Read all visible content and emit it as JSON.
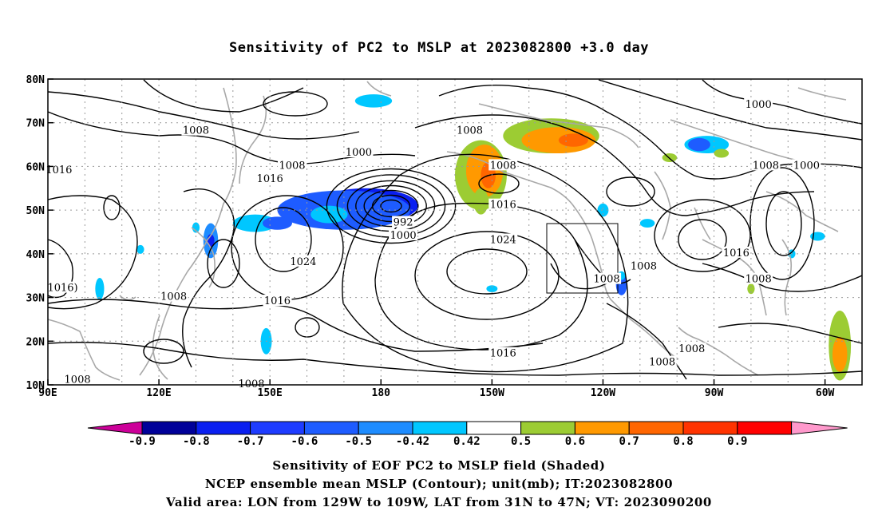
{
  "title": "Sensitivity of PC2 to MSLP at 2023082800 +3.0 day",
  "map": {
    "lon_labels": [
      "90E",
      "120E",
      "150E",
      "180",
      "150W",
      "120W",
      "90W",
      "60W"
    ],
    "lat_labels": [
      "80N",
      "70N",
      "60N",
      "50N",
      "40N",
      "30N",
      "20N",
      "10N"
    ],
    "contour_labels": [
      {
        "text": "1008",
        "lon": 130,
        "lat": 68
      },
      {
        "text": "1000",
        "lon": 174,
        "lat": 63
      },
      {
        "text": "1008",
        "lon": 156,
        "lat": 60
      },
      {
        "text": "1016",
        "lon": 93,
        "lat": 59
      },
      {
        "text": "1016",
        "lon": 150,
        "lat": 57
      },
      {
        "text": "992",
        "lon": 186,
        "lat": 47
      },
      {
        "text": "1000",
        "lon": 186,
        "lat": 44
      },
      {
        "text": "1024",
        "lon": 159,
        "lat": 38
      },
      {
        "text": "1016)",
        "lon": 94,
        "lat": 32
      },
      {
        "text": "1008",
        "lon": 124,
        "lat": 30
      },
      {
        "text": "1016",
        "lon": 152,
        "lat": 29
      },
      {
        "text": "1008",
        "lon": 204,
        "lat": 68
      },
      {
        "text": "1008",
        "lon": 213,
        "lat": 60
      },
      {
        "text": "1016",
        "lon": 213,
        "lat": 51
      },
      {
        "text": "1024",
        "lon": 213,
        "lat": 43
      },
      {
        "text": "1016",
        "lon": 213,
        "lat": 17
      },
      {
        "text": "1000",
        "lon": 282,
        "lat": 74
      },
      {
        "text": "1008",
        "lon": 284,
        "lat": 60
      },
      {
        "text": "1000",
        "lon": 295,
        "lat": 60
      },
      {
        "text": "1008",
        "lon": 251,
        "lat": 37
      },
      {
        "text": "1008",
        "lon": 241,
        "lat": 34
      },
      {
        "text": "1016",
        "lon": 276,
        "lat": 40
      },
      {
        "text": "1008",
        "lon": 282,
        "lat": 34
      },
      {
        "text": "1008",
        "lon": 264,
        "lat": 18
      },
      {
        "text": "1008",
        "lon": 256,
        "lat": 15
      },
      {
        "text": "1008",
        "lon": 98,
        "lat": 11
      },
      {
        "text": "1008",
        "lon": 145,
        "lat": 10
      }
    ],
    "shading": [
      {
        "lon": 176,
        "lat": 51,
        "rx": 14,
        "ry": 4,
        "color": "#0a1ff0"
      },
      {
        "lon": 170,
        "lat": 50,
        "rx": 18,
        "ry": 4.5,
        "color": "#1e5cff"
      },
      {
        "lon": 166,
        "lat": 49,
        "rx": 5,
        "ry": 2,
        "color": "#00c7ff"
      },
      {
        "lon": 146,
        "lat": 47,
        "rx": 6,
        "ry": 2,
        "color": "#00c7ff"
      },
      {
        "lon": 152,
        "lat": 47,
        "rx": 4,
        "ry": 1.5,
        "color": "#1e5cff"
      },
      {
        "lon": 134,
        "lat": 43,
        "rx": 2,
        "ry": 4,
        "color": "#1e8cff"
      },
      {
        "lon": 134,
        "lat": 43,
        "rx": 1,
        "ry": 1.5,
        "color": "#0a1ff0"
      },
      {
        "lon": 130,
        "lat": 46,
        "rx": 1,
        "ry": 1.2,
        "color": "#00c7ff"
      },
      {
        "lon": 115,
        "lat": 41,
        "rx": 1,
        "ry": 1,
        "color": "#00c7ff"
      },
      {
        "lon": 104,
        "lat": 32,
        "rx": 1.2,
        "ry": 2.5,
        "color": "#00c7ff"
      },
      {
        "lon": 149,
        "lat": 20,
        "rx": 1.5,
        "ry": 3,
        "color": "#00c7ff"
      },
      {
        "lon": 178,
        "lat": 75,
        "rx": 5,
        "ry": 1.5,
        "color": "#00c7ff"
      },
      {
        "lon": 210,
        "lat": 32,
        "rx": 1.5,
        "ry": 0.8,
        "color": "#00c7ff"
      },
      {
        "lon": 240,
        "lat": 50,
        "rx": 1.5,
        "ry": 1.5,
        "color": "#00c7ff"
      },
      {
        "lon": 252,
        "lat": 47,
        "rx": 2,
        "ry": 1,
        "color": "#00c7ff"
      },
      {
        "lon": 245,
        "lat": 33,
        "rx": 1.5,
        "ry": 2.5,
        "color": "#1e5cff"
      },
      {
        "lon": 245,
        "lat": 35,
        "rx": 1,
        "ry": 1,
        "color": "#00c7ff"
      },
      {
        "lon": 268,
        "lat": 65,
        "rx": 6,
        "ry": 2,
        "color": "#00c7ff"
      },
      {
        "lon": 266,
        "lat": 65,
        "rx": 3,
        "ry": 1.5,
        "color": "#1e5cff"
      },
      {
        "lon": 291,
        "lat": 40,
        "rx": 1,
        "ry": 1,
        "color": "#00c7ff"
      },
      {
        "lon": 298,
        "lat": 44,
        "rx": 2,
        "ry": 1,
        "color": "#00c7ff"
      },
      {
        "lon": 207,
        "lat": 58,
        "rx": 7,
        "ry": 8,
        "color": "#9ccc33"
      },
      {
        "lon": 208,
        "lat": 59,
        "rx": 5,
        "ry": 6,
        "color": "#ff9900"
      },
      {
        "lon": 209,
        "lat": 58,
        "rx": 2,
        "ry": 3,
        "color": "#ff6600"
      },
      {
        "lon": 207,
        "lat": 52,
        "rx": 2,
        "ry": 3,
        "color": "#9ccc33"
      },
      {
        "lon": 226,
        "lat": 67,
        "rx": 13,
        "ry": 4,
        "color": "#9ccc33"
      },
      {
        "lon": 228,
        "lat": 66,
        "rx": 10,
        "ry": 3,
        "color": "#ff9900"
      },
      {
        "lon": 232,
        "lat": 66,
        "rx": 4,
        "ry": 1.5,
        "color": "#ff6600"
      },
      {
        "lon": 258,
        "lat": 62,
        "rx": 2,
        "ry": 1,
        "color": "#9ccc33"
      },
      {
        "lon": 272,
        "lat": 63,
        "rx": 2,
        "ry": 1,
        "color": "#9ccc33"
      },
      {
        "lon": 280,
        "lat": 32,
        "rx": 1,
        "ry": 1.2,
        "color": "#9ccc33"
      },
      {
        "lon": 304,
        "lat": 19,
        "rx": 3,
        "ry": 8,
        "color": "#9ccc33"
      },
      {
        "lon": 304,
        "lat": 17,
        "rx": 2,
        "ry": 4,
        "color": "#ff9900"
      }
    ]
  },
  "colorbar": {
    "labels": [
      "-0.9",
      "-0.8",
      "-0.7",
      "-0.6",
      "-0.5",
      "-0.42",
      "0.42",
      "0.5",
      "0.6",
      "0.7",
      "0.8",
      "0.9"
    ],
    "colors": [
      "#000099",
      "#0a1ff0",
      "#1e3cff",
      "#1e5cff",
      "#1e8cff",
      "#00c7ff",
      "#ffffff",
      "#9ccc33",
      "#ff9900",
      "#ff6600",
      "#ff3300",
      "#ff0000"
    ],
    "low_end_color": "#cc0099",
    "high_end_color": "#ff99cc"
  },
  "captions": [
    "Sensitivity of EOF PC2 to MSLP field (Shaded)",
    "NCEP ensemble mean MSLP (Contour); unit(mb); IT:2023082800",
    "Valid area: LON from 129W to 109W, LAT from 31N to 47N; VT: 2023090200"
  ]
}
